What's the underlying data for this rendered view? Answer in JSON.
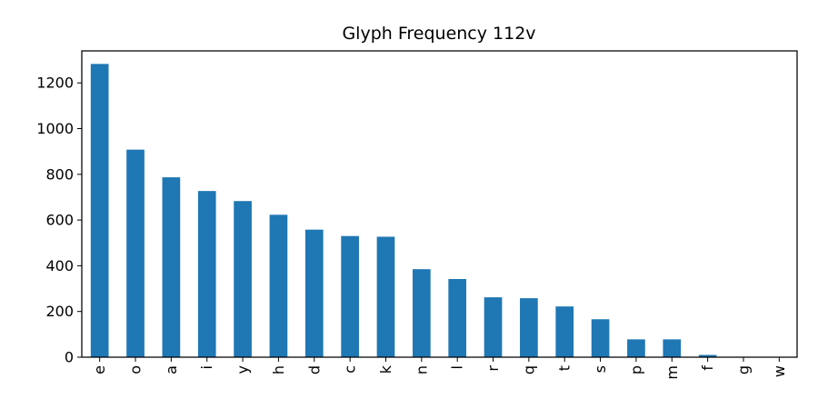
{
  "chart_data": {
    "type": "bar",
    "title": "Glyph Frequency 112v",
    "xlabel": "",
    "ylabel": "",
    "categories": [
      "e",
      "o",
      "a",
      "i",
      "y",
      "h",
      "d",
      "c",
      "k",
      "n",
      "l",
      "r",
      "q",
      "t",
      "s",
      "p",
      "m",
      "f",
      "g",
      "w"
    ],
    "values": [
      1283,
      908,
      787,
      727,
      683,
      623,
      558,
      530,
      527,
      385,
      342,
      262,
      258,
      222,
      166,
      78,
      78,
      10,
      1,
      1
    ],
    "ylim": [
      0,
      1340
    ],
    "yticks": [
      0,
      200,
      400,
      600,
      800,
      1000,
      1200
    ],
    "grid": false,
    "legend": "none",
    "bar_color": "#1f77b4",
    "x_tick_rotation": "vertical"
  }
}
